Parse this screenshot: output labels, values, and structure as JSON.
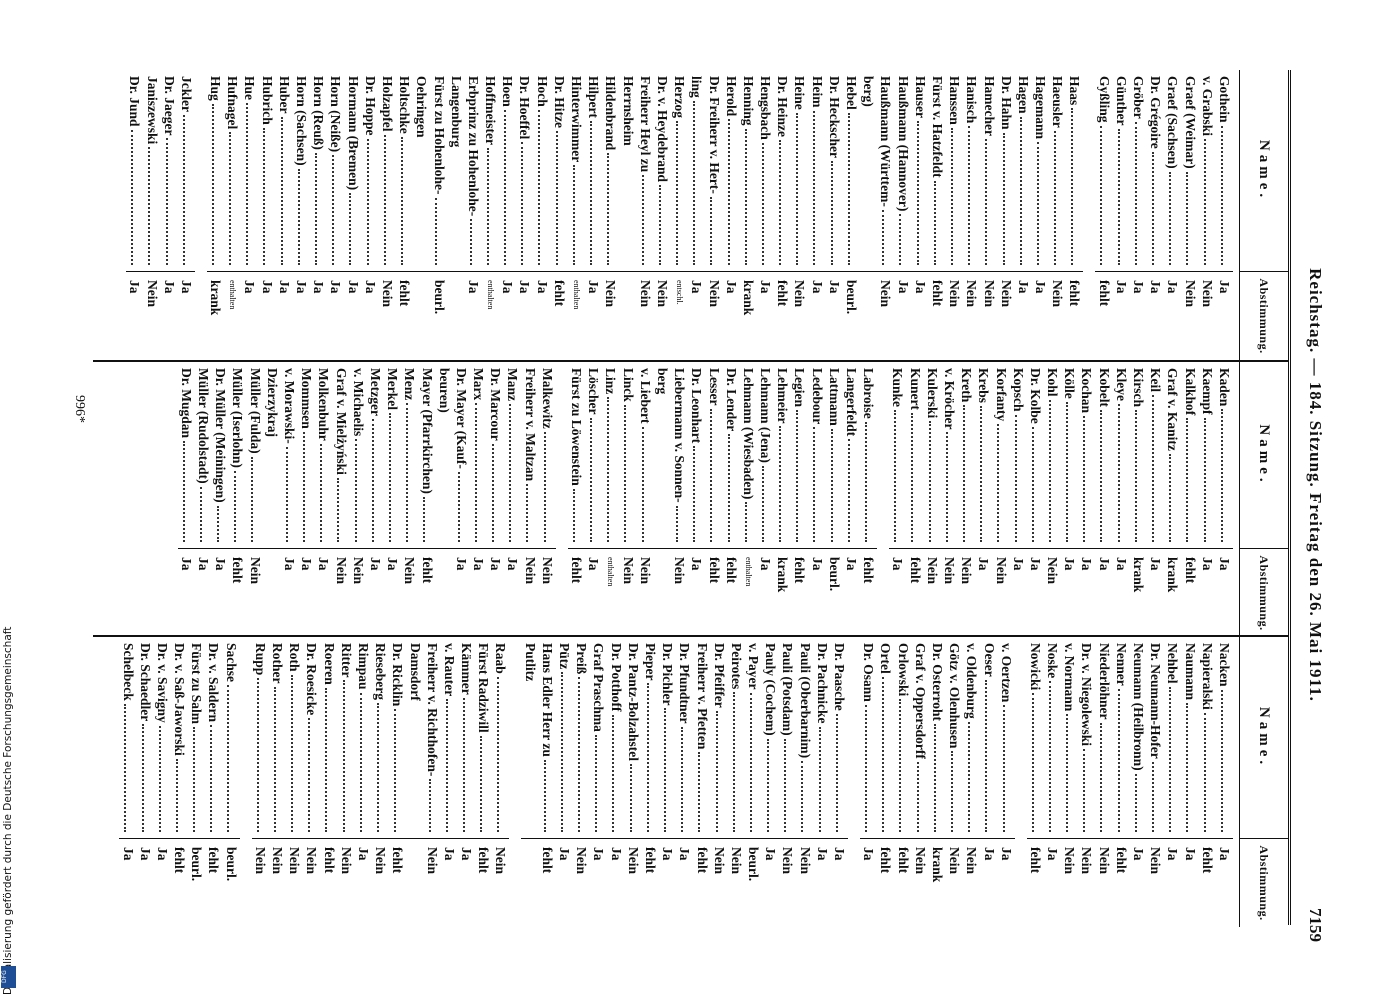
{
  "header": {
    "title": "Reichstag. — 184. Sitzung. Freitag den 26. Mai 1911.",
    "page": "7159"
  },
  "table_header": {
    "name": "Name.",
    "vote": "Abstimmung."
  },
  "footer": "996*",
  "sidebar": {
    "text": "Digitalisierung gefördert durch die Deutsche Forschungsgemeinschaft",
    "logo": "DFG"
  },
  "columns": [
    {
      "groups": [
        [
          {
            "name": "Gothein",
            "vote": "Ja"
          },
          {
            "name": "v. Grabski",
            "vote": "Nein"
          },
          {
            "name": "Graef (Weimar)",
            "vote": "Nein"
          },
          {
            "name": "Graef (Sachsen)",
            "vote": "Ja"
          },
          {
            "name": "Dr. Grégoire",
            "vote": "Ja"
          },
          {
            "name": "Gröber",
            "vote": "Ja"
          },
          {
            "name": "Günther",
            "vote": "Ja"
          },
          {
            "name": "Gyßling",
            "vote": "fehlt"
          }
        ],
        [
          {
            "name": "Haas",
            "vote": "fehlt"
          },
          {
            "name": "Haeusler",
            "vote": "Nein"
          },
          {
            "name": "Hagemann",
            "vote": "Ja"
          },
          {
            "name": "Hagen",
            "vote": "Ja"
          },
          {
            "name": "Dr. Hahn",
            "vote": "Nein"
          },
          {
            "name": "Hamecher",
            "vote": "Nein"
          },
          {
            "name": "Hanisch",
            "vote": "Nein"
          },
          {
            "name": "Hanssen",
            "vote": "Nein"
          },
          {
            "name": "Fürst v. Hatzfeldt",
            "vote": "fehlt"
          },
          {
            "name": "Hauser",
            "vote": "Ja"
          },
          {
            "name": "Haußmann (Hannover)",
            "vote": "Ja"
          },
          {
            "name": "Haußmann (Württem-",
            "vote": "Nein"
          },
          {
            "name": "berg)"
          },
          {
            "name": "Hebel",
            "vote": "beurl."
          },
          {
            "name": "Dr. Heckscher",
            "vote": "Ja"
          },
          {
            "name": "Heim",
            "vote": "Ja"
          },
          {
            "name": "Heine",
            "vote": "Nein"
          },
          {
            "name": "Dr. Heinze",
            "vote": "fehlt"
          },
          {
            "name": "Hengsbach",
            "vote": "Ja"
          },
          {
            "name": "Henning",
            "vote": "krank"
          },
          {
            "name": "Herold",
            "vote": "Ja"
          },
          {
            "name": "Dr. Freiherr v. Hert-",
            "vote": "Nein"
          },
          {
            "name": "ling",
            "vote": "Ja"
          },
          {
            "name": "Herzog",
            "vote": "entschl."
          },
          {
            "name": "Dr. v. Heydebrand",
            "vote": "Nein"
          },
          {
            "name": "Freiherr Heyl zu",
            "vote": "Nein"
          },
          {
            "name": "Herrnsheim"
          },
          {
            "name": "Hildenbrand",
            "vote": "Nein"
          },
          {
            "name": "Hilpert",
            "vote": "Ja"
          },
          {
            "name": "Hinterwimmer",
            "vote": "enthalten"
          },
          {
            "name": "Dr. Hitze",
            "vote": "fehlt"
          },
          {
            "name": "Hoch",
            "vote": "Ja"
          },
          {
            "name": "Dr. Hoeffel",
            "vote": "Ja"
          },
          {
            "name": "Hoen",
            "vote": "Ja"
          },
          {
            "name": "Hoffmeister",
            "vote": "enthalten"
          },
          {
            "name": "Erbprinz zu Hohenlohe-",
            "vote": "Ja"
          },
          {
            "name": "Langenburg"
          },
          {
            "name": "Fürst zu Hohenlohe-",
            "vote": "beurl."
          },
          {
            "name": "Oehringen"
          },
          {
            "name": "Holtschke",
            "vote": "fehlt"
          },
          {
            "name": "Holzapfel",
            "vote": "Nein"
          },
          {
            "name": "Dr. Hoppe",
            "vote": "Ja"
          },
          {
            "name": "Hormann (Bremen)",
            "vote": "Ja"
          },
          {
            "name": "Horn (Neiße)",
            "vote": "Ja"
          },
          {
            "name": "Horn (Reuß)",
            "vote": "Ja"
          },
          {
            "name": "Horn (Sachsen)",
            "vote": "Ja"
          },
          {
            "name": "Huber",
            "vote": "Ja"
          },
          {
            "name": "Hubrich",
            "vote": "Ja"
          },
          {
            "name": "Hue",
            "vote": "Ja"
          },
          {
            "name": "Hufnagel",
            "vote": "enthalten"
          },
          {
            "name": "Hug",
            "vote": "krank"
          }
        ],
        [
          {
            "name": "Jckler",
            "vote": "Ja"
          },
          {
            "name": "Dr. Jaeger",
            "vote": "Ja"
          },
          {
            "name": "Janiszewski",
            "vote": "Nein"
          },
          {
            "name": "Dr. Jund",
            "vote": "Ja"
          }
        ]
      ]
    },
    {
      "groups": [
        [
          {
            "name": "Kaden",
            "vote": "Ja"
          },
          {
            "name": "Kaempf",
            "vote": "Ja"
          },
          {
            "name": "Kalkhof",
            "vote": "fehlt"
          },
          {
            "name": "Graf v. Kanitz",
            "vote": "krank"
          },
          {
            "name": "Keil",
            "vote": "Ja"
          },
          {
            "name": "Kirsch",
            "vote": "krank"
          },
          {
            "name": "Kleye",
            "vote": "Ja"
          },
          {
            "name": "Kobelt",
            "vote": "Ja"
          },
          {
            "name": "Kochan",
            "vote": "Ja"
          },
          {
            "name": "Kölle",
            "vote": "Ja"
          },
          {
            "name": "Kohl",
            "vote": "Nein"
          },
          {
            "name": "Dr. Kolbe",
            "vote": "Ja"
          },
          {
            "name": "Kopsch",
            "vote": "Ja"
          },
          {
            "name": "Korfanty",
            "vote": "Nein"
          },
          {
            "name": "Krebs",
            "vote": "Ja"
          },
          {
            "name": "Kreth",
            "vote": "Nein"
          },
          {
            "name": "v. Kröcher",
            "vote": "Nein"
          },
          {
            "name": "Kulerski",
            "vote": "Nein"
          },
          {
            "name": "Kunert",
            "vote": "fehlt"
          },
          {
            "name": "Kunke",
            "vote": "Ja"
          }
        ],
        [
          {
            "name": "Labroise",
            "vote": "fehlt"
          },
          {
            "name": "Langerfeldt",
            "vote": "Ja"
          },
          {
            "name": "Lattmann",
            "vote": "beurl."
          },
          {
            "name": "Ledebour",
            "vote": "Ja"
          },
          {
            "name": "Legien",
            "vote": "fehlt"
          },
          {
            "name": "Lehmeier",
            "vote": "krank"
          },
          {
            "name": "Lehmann (Jena)",
            "vote": "Ja"
          },
          {
            "name": "Lehmann (Wiesbaden)",
            "vote": "enthalten"
          },
          {
            "name": "Dr. Lender",
            "vote": "fehlt"
          },
          {
            "name": "Lesser",
            "vote": "fehlt"
          },
          {
            "name": "Dr. Leonhart",
            "vote": "Ja"
          },
          {
            "name": "Liebermann v. Sonnen-",
            "vote": "Nein"
          },
          {
            "name": "berg"
          },
          {
            "name": "v. Liebert",
            "vote": "Nein"
          },
          {
            "name": "Linck",
            "vote": "Nein"
          },
          {
            "name": "Linz",
            "vote": "enthalten"
          },
          {
            "name": "Löscher",
            "vote": "Ja"
          },
          {
            "name": "Fürst zu Löwenstein",
            "vote": "fehlt"
          }
        ],
        [
          {
            "name": "Malkewitz",
            "vote": "Nein"
          },
          {
            "name": "Freiherr v. Maltzan",
            "vote": "Nein"
          },
          {
            "name": "Manz",
            "vote": "Ja"
          },
          {
            "name": "Dr. Marcour",
            "vote": "Ja"
          },
          {
            "name": "Marx",
            "vote": "Ja"
          },
          {
            "name": "Dr. Mayer (Kauf-",
            "vote": "Ja"
          },
          {
            "name": "beuren)"
          },
          {
            "name": "Mayer (Pfarrkirchen)",
            "vote": "fehlt"
          },
          {
            "name": "Menz",
            "vote": "Nein"
          },
          {
            "name": "Merkel",
            "vote": "Ja"
          },
          {
            "name": "Metzger",
            "vote": "Ja"
          },
          {
            "name": "v. Michaelis",
            "vote": "Nein"
          },
          {
            "name": "Graf v. Mielżyński",
            "vote": "Nein"
          },
          {
            "name": "Molkenbuhr",
            "vote": "Ja"
          },
          {
            "name": "Mommsen",
            "vote": "Ja"
          },
          {
            "name": "v. Morawski-",
            "vote": "Ja"
          },
          {
            "name": "Dzierzykraj"
          },
          {
            "name": "Müller (Fulda)",
            "vote": "Nein"
          },
          {
            "name": "Müller (Iserlohn)",
            "vote": "fehlt"
          },
          {
            "name": "Dr. Müller (Meiningen)",
            "vote": "Ja"
          },
          {
            "name": "Müller (Rudolstadt)",
            "vote": "Ja"
          },
          {
            "name": "Dr. Mugdan",
            "vote": "Ja"
          }
        ]
      ]
    },
    {
      "groups": [
        [
          {
            "name": "Nacken",
            "vote": "Ja"
          },
          {
            "name": "Napieralski",
            "vote": "fehlt"
          },
          {
            "name": "Naumann",
            "vote": "Ja"
          },
          {
            "name": "Nehbel",
            "vote": "Ja"
          },
          {
            "name": "Dr. Neumann-Hofer",
            "vote": "Nein"
          },
          {
            "name": "Neumann (Heilbronn)",
            "vote": "Ja"
          },
          {
            "name": "Nenner",
            "vote": "fehlt"
          },
          {
            "name": "Niederlöhner",
            "vote": "Nein"
          },
          {
            "name": "Dr. v. Niegolewski",
            "vote": "Nein"
          },
          {
            "name": "v. Normann",
            "vote": "Nein"
          },
          {
            "name": "Noske",
            "vote": "Ja"
          },
          {
            "name": "Nowicki",
            "vote": "fehlt"
          }
        ],
        [
          {
            "name": "v. Oertzen",
            "vote": "Ja"
          },
          {
            "name": "Oeser",
            "vote": "Ja"
          },
          {
            "name": "v. Oldenburg",
            "vote": "Nein"
          },
          {
            "name": "Götz v. Olenhusen",
            "vote": "Nein"
          },
          {
            "name": "Dr. Osterroht",
            "vote": "krank"
          },
          {
            "name": "Graf v. Oppersdorff",
            "vote": "Nein"
          },
          {
            "name": "Orlowski",
            "vote": "fehlt"
          },
          {
            "name": "Ortel",
            "vote": "fehlt"
          },
          {
            "name": "Dr. Osann",
            "vote": "Ja"
          }
        ],
        [
          {
            "name": "Dr. Paasche",
            "vote": "Ja"
          },
          {
            "name": "Dr. Pachnicke",
            "vote": "Ja"
          },
          {
            "name": "Pauli (Oberbarnim)",
            "vote": "Nein"
          },
          {
            "name": "Pauli (Potsdam)",
            "vote": "Nein"
          },
          {
            "name": "Pauly (Cochem)",
            "vote": "Ja"
          },
          {
            "name": "v. Payer",
            "vote": "beurl."
          },
          {
            "name": "Peirotes",
            "vote": "Nein"
          },
          {
            "name": "Dr. Pfeiffer",
            "vote": "Nein"
          },
          {
            "name": "Freiherr v. Pfetten",
            "vote": "fehlt"
          },
          {
            "name": "Dr. Pfundtner",
            "vote": "Ja"
          },
          {
            "name": "Dr. Pichler",
            "vote": "Ja"
          },
          {
            "name": "Pieper",
            "vote": "fehlt"
          },
          {
            "name": "Dr. Pantz-Bolzahstel",
            "vote": "Nein"
          },
          {
            "name": "Dr. Potthoff",
            "vote": "Ja"
          },
          {
            "name": "Graf Praschma",
            "vote": "Ja"
          },
          {
            "name": "Preiß",
            "vote": "Nein"
          },
          {
            "name": "Pütz",
            "vote": "Ja"
          },
          {
            "name": "Hans Edler Herr zu",
            "vote": "fehlt"
          },
          {
            "name": "Putlitz"
          }
        ],
        [
          {
            "name": "Raab",
            "vote": "Nein"
          },
          {
            "name": "Fürst Radziwill",
            "vote": "fehlt"
          },
          {
            "name": "Kämmer",
            "vote": "Ja"
          },
          {
            "name": "v. Rauter",
            "vote": "Ja"
          },
          {
            "name": "Freiherr v. Richthofen-",
            "vote": "Nein"
          },
          {
            "name": "Damsdorf"
          },
          {
            "name": "Dr. Ricklin",
            "vote": "fehlt"
          },
          {
            "name": "Rieseberg",
            "vote": "Nein"
          },
          {
            "name": "Rimpau",
            "vote": "Ja"
          },
          {
            "name": "Ritter",
            "vote": "Nein"
          },
          {
            "name": "Roeren",
            "vote": "fehlt"
          },
          {
            "name": "Dr. Roesicke",
            "vote": "Nein"
          },
          {
            "name": "Roth",
            "vote": "Nein"
          },
          {
            "name": "Rother",
            "vote": "Nein"
          },
          {
            "name": "Rupp",
            "vote": "Nein"
          }
        ],
        [
          {
            "name": "Sachse",
            "vote": "beurl."
          },
          {
            "name": "Dr. v. Saldern",
            "vote": "fehlt"
          },
          {
            "name": "Fürst zu Salm",
            "vote": "beurl."
          },
          {
            "name": "Dr. v. Saß-Jaworski",
            "vote": "fehlt"
          },
          {
            "name": "Dr. v. Savigny",
            "vote": "Ja"
          },
          {
            "name": "Dr. Schaedler",
            "vote": "Ja"
          },
          {
            "name": "Schelbeck",
            "vote": "Ja"
          }
        ]
      ]
    }
  ]
}
